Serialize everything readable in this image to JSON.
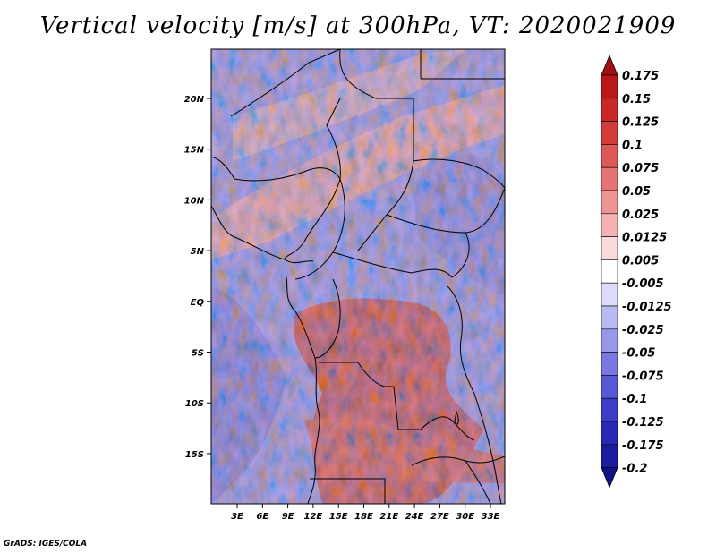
{
  "title": "Vertical velocity [m/s] at 300hPa, VT: 2020021909",
  "footer": "GrADS: IGES/COLA",
  "map": {
    "variable": "Vertical velocity",
    "units": "m/s",
    "level": "300hPa",
    "valid_time": "2020021909",
    "lat_labels": [
      "20N",
      "15N",
      "10N",
      "5N",
      "EQ",
      "5S",
      "10S",
      "15S"
    ],
    "lon_labels": [
      "3E",
      "6E",
      "9E",
      "12E",
      "15E",
      "18E",
      "21E",
      "24E",
      "27E",
      "30E",
      "33E"
    ]
  },
  "colorbar": {
    "labels": [
      "0.175",
      "0.15",
      "0.125",
      "0.1",
      "0.075",
      "0.05",
      "0.025",
      "0.0125",
      "0.005",
      "-0.005",
      "-0.0125",
      "-0.025",
      "-0.05",
      "-0.075",
      "-0.1",
      "-0.125",
      "-0.175",
      "-0.2"
    ],
    "colors": [
      "#a01010",
      "#b81818",
      "#c82828",
      "#d43c3c",
      "#de5858",
      "#e67474",
      "#ee9494",
      "#f4b4b4",
      "#fadada",
      "#ffffff",
      "#dcdcfa",
      "#b8b8f2",
      "#9898ea",
      "#7878e0",
      "#5858d4",
      "#3c3cc6",
      "#2828b4",
      "#1c1ca0",
      "#12128a"
    ]
  }
}
